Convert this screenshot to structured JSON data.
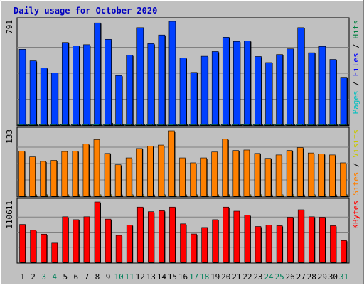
{
  "chart_data": {
    "type": "bar",
    "title": "Daily usage for October 2020",
    "x": [
      "1",
      "2",
      "3",
      "4",
      "5",
      "6",
      "7",
      "8",
      "9",
      "10",
      "11",
      "12",
      "13",
      "14",
      "15",
      "16",
      "17",
      "18",
      "19",
      "20",
      "21",
      "22",
      "23",
      "24",
      "25",
      "26",
      "27",
      "28",
      "29",
      "30",
      "31"
    ],
    "weekend_days": [
      "3",
      "4",
      "10",
      "11",
      "17",
      "18",
      "24",
      "25",
      "31"
    ],
    "panels": [
      {
        "id": "pages-files-hits",
        "ymax_label": "791",
        "ymax": 791,
        "legend": [
          {
            "text": "Pages",
            "color": "#00c0c0"
          },
          {
            "text": "Files",
            "color": "#0000ff"
          },
          {
            "text": "Hits",
            "color": "#008040"
          }
        ],
        "series": [
          {
            "name": "Hits",
            "color": "#00a060",
            "values": [
              8,
              6,
              6,
              6,
              7,
              7,
              7,
              8,
              15,
              6,
              7,
              7,
              7,
              7,
              8,
              6,
              7,
              7,
              7,
              8,
              8,
              8,
              7,
              7,
              7,
              7,
              8,
              7,
              7,
              7,
              7
            ]
          },
          {
            "name": "Files",
            "color": "#0040ff",
            "values": [
              578,
              490,
              436,
              399,
              630,
              605,
              613,
              779,
              654,
              378,
              533,
              743,
              621,
              687,
              791,
              512,
              402,
              525,
              561,
              670,
              638,
              642,
              523,
              477,
              538,
              581,
              743,
              552,
              600,
              501,
              365
            ]
          },
          {
            "name": "Pages",
            "color": "#00c8c8",
            "values": [
              5,
              4,
              4,
              4,
              5,
              5,
              5,
              6,
              5,
              4,
              4,
              5,
              5,
              5,
              6,
              4,
              4,
              4,
              5,
              5,
              5,
              5,
              4,
              4,
              5,
              5,
              6,
              4,
              4,
              4,
              4
            ]
          }
        ]
      },
      {
        "id": "sites-visits",
        "ymax_label": "133",
        "ymax": 133,
        "legend": [
          {
            "text": "Sites",
            "color": "#ff8000"
          },
          {
            "text": "Visits",
            "color": "#c8c800"
          }
        ],
        "series": [
          {
            "name": "Visits",
            "color": "#ffe000",
            "values": [
              3,
              3,
              3,
              3,
              3,
              3,
              3,
              3,
              3,
              3,
              3,
              3,
              3,
              3,
              3,
              3,
              3,
              3,
              3,
              3,
              3,
              3,
              3,
              3,
              3,
              3,
              3,
              3,
              3,
              3,
              3
            ]
          },
          {
            "name": "Sites",
            "color": "#ff8000",
            "values": [
              92,
              80,
              71,
              73,
              91,
              92,
              106,
              115,
              87,
              64,
              78,
              97,
              102,
              104,
              133,
              78,
              68,
              78,
              90,
              116,
              93,
              94,
              87,
              77,
              84,
              93,
              99,
              88,
              86,
              84,
              68
            ]
          }
        ]
      },
      {
        "id": "kbytes",
        "ymax_label": "110611",
        "ymax": 110611,
        "legend": [
          {
            "text": "KBytes",
            "color": "#ff0000"
          }
        ],
        "series": [
          {
            "name": "KBytes",
            "color": "#ff0000",
            "values": [
              69500,
              58800,
              51700,
              35300,
              83500,
              78200,
              83500,
              110611,
              79200,
              49400,
              68300,
              101200,
              92800,
              94500,
              101200,
              70500,
              52000,
              63900,
              78200,
              101200,
              93700,
              86400,
              65700,
              68300,
              67100,
              82700,
              96300,
              83500,
              82700,
              67100,
              40000
            ]
          }
        ]
      }
    ]
  }
}
